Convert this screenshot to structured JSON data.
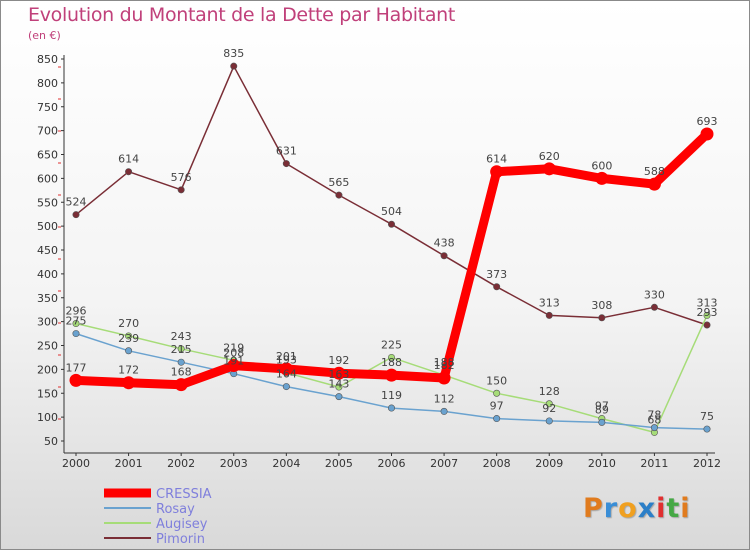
{
  "header": {
    "title": "Evolution du Montant de la Dette par Habitant",
    "subtitle": "(en €)"
  },
  "logo": {
    "text": "Proxiti",
    "colors": [
      "#e07b1e",
      "#3a8ed6",
      "#f0a020",
      "#2b7fc8",
      "#e03030",
      "#45a845",
      "#e07b1e"
    ]
  },
  "chart_data": {
    "type": "line",
    "title": "Evolution du Montant de la Dette par Habitant",
    "subtitle": "(en €)",
    "xlabel": "",
    "ylabel": "",
    "x": [
      "2000",
      "2001",
      "2002",
      "2003",
      "2004",
      "2005",
      "2006",
      "2007",
      "2008",
      "2009",
      "2010",
      "2011",
      "2012"
    ],
    "ylim": [
      50,
      850
    ],
    "yticks": [
      "50",
      "100",
      "150",
      "200",
      "250",
      "300",
      "350",
      "400",
      "450",
      "500",
      "550",
      "600",
      "650",
      "700",
      "750",
      "800",
      "850"
    ],
    "grid": false,
    "legend_position": "bottom-left",
    "series": [
      {
        "name": "CRESSIA",
        "color": "#ff0000",
        "values": [
          177,
          172,
          168,
          208,
          201,
          192,
          188,
          182,
          614,
          620,
          600,
          588,
          693
        ],
        "labels": [
          "177",
          "172",
          "168",
          "208",
          "201",
          "192",
          "188",
          "182",
          "614",
          "620",
          "600",
          "588",
          "693"
        ]
      },
      {
        "name": "Rosay",
        "color": "#6aa2cf",
        "values": [
          275,
          239,
          215,
          191,
          164,
          143,
          119,
          112,
          97,
          92,
          89,
          78,
          75
        ],
        "labels": [
          "275",
          "239",
          "215",
          "191",
          "164",
          "143",
          "119",
          "112",
          "97",
          "92",
          "89",
          "78",
          "75"
        ]
      },
      {
        "name": "Augisey",
        "color": "#a6dc78",
        "values": [
          296,
          270,
          243,
          219,
          193,
          163,
          225,
          188,
          150,
          128,
          97,
          68,
          313
        ],
        "labels": [
          "296",
          "270",
          "243",
          "219",
          "193",
          "163",
          "225",
          "188",
          "150",
          "128",
          "97",
          "68",
          "313"
        ]
      },
      {
        "name": "Pimorin",
        "color": "#7a2e36",
        "values": [
          524,
          614,
          576,
          835,
          631,
          565,
          504,
          438,
          373,
          313,
          308,
          330,
          293
        ],
        "labels": [
          "524",
          "614",
          "576",
          "835",
          "631",
          "565",
          "504",
          "438",
          "373",
          "313",
          "308",
          "330",
          "293"
        ]
      }
    ]
  }
}
